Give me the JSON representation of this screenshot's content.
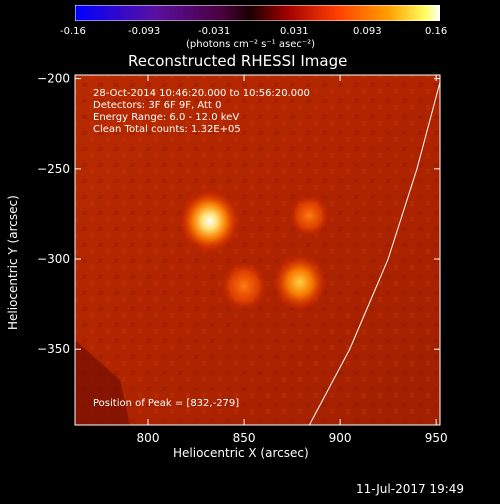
{
  "colorbar": {
    "ticks": [
      "-0.16",
      "-0.093",
      "-0.031",
      "0.031",
      "0.093",
      "0.16"
    ],
    "unit_label": "(photons cm⁻² s⁻¹ asec⁻²)"
  },
  "plot": {
    "title": "Reconstructed RHESSI Image",
    "annotations": [
      "28-Oct-2014 10:46:20.000 to 10:56:20.000",
      "Detectors: 3F 6F 9F, Att 0",
      "Energy Range: 6.0 - 12.0 keV",
      "Clean    Total counts: 1.32E+05"
    ],
    "peak_label": "Position of Peak = [832,-279]",
    "xlabel": "Heliocentric X (arcsec)",
    "ylabel": "Heliocentric Y (arcsec)"
  },
  "footer": {
    "timestamp": "11-Jul-2017 19:49"
  },
  "chart_data": {
    "type": "heatmap",
    "title": "Reconstructed RHESSI Image",
    "xlabel": "Heliocentric X (arcsec)",
    "ylabel": "Heliocentric Y (arcsec)",
    "xlim": [
      762,
      952
    ],
    "ylim": [
      -392,
      -198
    ],
    "xticks": [
      800,
      850,
      900,
      950
    ],
    "yticks": [
      -200,
      -250,
      -300,
      -350
    ],
    "colorbar_range": [
      -0.16,
      0.16
    ],
    "colormap": "hot (blue-purple-red-orange-yellow-white)",
    "sources": [
      {
        "x": 832,
        "y": -279,
        "peak": 0.16
      },
      {
        "x": 879,
        "y": -313,
        "peak": 0.13
      },
      {
        "x": 850,
        "y": -315,
        "peak": 0.1
      },
      {
        "x": 884,
        "y": -276,
        "peak": 0.07
      }
    ],
    "limb_curve": [
      [
        952,
        -202
      ],
      [
        940,
        -250
      ],
      [
        925,
        -300
      ],
      [
        905,
        -350
      ],
      [
        884,
        -392
      ]
    ],
    "peak_position": [
      832,
      -279
    ]
  },
  "colors": {
    "background": "#000000",
    "text": "#ffffff"
  }
}
